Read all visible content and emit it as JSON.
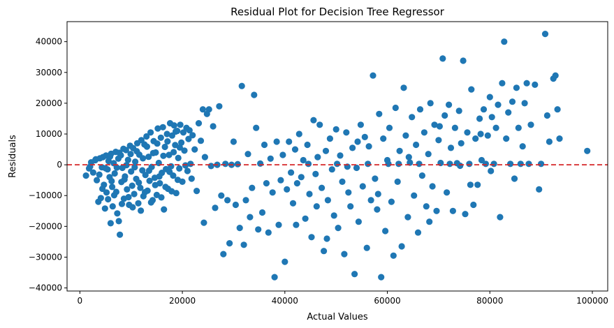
{
  "chart_data": {
    "type": "scatter",
    "title": "Residual Plot for Decision Tree Regressor",
    "xlabel": "Actual Values",
    "ylabel": "Residuals",
    "xlim": [
      -2500,
      103000
    ],
    "ylim": [
      -41000,
      46500
    ],
    "xticks": [
      0,
      20000,
      40000,
      60000,
      80000,
      100000
    ],
    "yticks": [
      -40000,
      -30000,
      -20000,
      -10000,
      0,
      10000,
      20000,
      30000,
      40000
    ],
    "point_color": "#1f77b4",
    "reference_line": {
      "y": 0,
      "color": "#d62728",
      "style": "dashed"
    },
    "grid": false,
    "points": [
      [
        1200,
        -3500
      ],
      [
        1800,
        -1200
      ],
      [
        2200,
        800
      ],
      [
        2600,
        -2500
      ],
      [
        3000,
        1500
      ],
      [
        3300,
        -5000
      ],
      [
        3600,
        -12000
      ],
      [
        3900,
        2100
      ],
      [
        4100,
        -10800
      ],
      [
        4300,
        -800
      ],
      [
        4500,
        2500
      ],
      [
        4700,
        -6500
      ],
      [
        4900,
        -14200
      ],
      [
        5100,
        3000
      ],
      [
        5200,
        -9000
      ],
      [
        5400,
        -1500
      ],
      [
        5600,
        1200
      ],
      [
        5800,
        -4000
      ],
      [
        6000,
        -19000
      ],
      [
        6100,
        3600
      ],
      [
        6300,
        -7200
      ],
      [
        6400,
        -13500
      ],
      [
        6600,
        500
      ],
      [
        6800,
        -2800
      ],
      [
        7000,
        4200
      ],
      [
        7100,
        -8800
      ],
      [
        7300,
        -15800
      ],
      [
        7500,
        2000
      ],
      [
        7600,
        -18300
      ],
      [
        7800,
        -22700
      ],
      [
        8000,
        3100
      ],
      [
        8100,
        -5600
      ],
      [
        8300,
        -1000
      ],
      [
        8500,
        5200
      ],
      [
        8600,
        -11000
      ],
      [
        8800,
        -3800
      ],
      [
        9000,
        4800
      ],
      [
        9200,
        -8000
      ],
      [
        9400,
        1600
      ],
      [
        9600,
        -13000
      ],
      [
        9800,
        6200
      ],
      [
        10000,
        -2200
      ],
      [
        10200,
        -6800
      ],
      [
        10400,
        5400
      ],
      [
        10600,
        -9500
      ],
      [
        10800,
        1000
      ],
      [
        11000,
        -4600
      ],
      [
        11200,
        7000
      ],
      [
        11400,
        -12500
      ],
      [
        11600,
        3300
      ],
      [
        11800,
        -7500
      ],
      [
        12000,
        8000
      ],
      [
        12200,
        -1800
      ],
      [
        12400,
        -10200
      ],
      [
        12600,
        6600
      ],
      [
        12800,
        -3300
      ],
      [
        13000,
        9200
      ],
      [
        13200,
        -8400
      ],
      [
        13400,
        2600
      ],
      [
        13600,
        -5200
      ],
      [
        13800,
        10500
      ],
      [
        14000,
        -700
      ],
      [
        14200,
        -11500
      ],
      [
        14400,
        7700
      ],
      [
        14600,
        -4200
      ],
      [
        14800,
        4000
      ],
      [
        15000,
        -9800
      ],
      [
        15200,
        11800
      ],
      [
        15400,
        600
      ],
      [
        15600,
        -6000
      ],
      [
        15800,
        8800
      ],
      [
        16000,
        -2600
      ],
      [
        16200,
        12200
      ],
      [
        16400,
        -14500
      ],
      [
        16600,
        5800
      ],
      [
        16800,
        -1400
      ],
      [
        17000,
        10000
      ],
      [
        17200,
        -7800
      ],
      [
        17400,
        3200
      ],
      [
        17600,
        13500
      ],
      [
        17800,
        -500
      ],
      [
        18000,
        9500
      ],
      [
        18200,
        -3500
      ],
      [
        18400,
        12800
      ],
      [
        18600,
        6400
      ],
      [
        18800,
        -9200
      ],
      [
        19000,
        11000
      ],
      [
        19200,
        2200
      ],
      [
        19400,
        -1200
      ],
      [
        19600,
        13000
      ],
      [
        19800,
        7200
      ],
      [
        20000,
        -5500
      ],
      [
        20200,
        10500
      ],
      [
        20400,
        4600
      ],
      [
        20600,
        -200
      ],
      [
        20800,
        12000
      ],
      [
        21000,
        -2000
      ],
      [
        21200,
        8400
      ],
      [
        21400,
        11200
      ],
      [
        21600,
        300
      ],
      [
        21800,
        -4500
      ],
      [
        22000,
        9600
      ],
      [
        22400,
        5000
      ],
      [
        22800,
        -8500
      ],
      [
        23200,
        13500
      ],
      [
        23600,
        7800
      ],
      [
        24000,
        18000
      ],
      [
        24200,
        -18800
      ],
      [
        24400,
        2500
      ],
      [
        24800,
        16500
      ],
      [
        25200,
        18000
      ],
      [
        25600,
        -400
      ],
      [
        26000,
        12500
      ],
      [
        26400,
        -14000
      ],
      [
        26800,
        0
      ],
      [
        27200,
        19000
      ],
      [
        27600,
        -10000
      ],
      [
        28000,
        -29000
      ],
      [
        28400,
        300
      ],
      [
        28800,
        -11500
      ],
      [
        29200,
        -25500
      ],
      [
        29600,
        0
      ],
      [
        30000,
        7500
      ],
      [
        30400,
        -13000
      ],
      [
        30800,
        200
      ],
      [
        31200,
        -20500
      ],
      [
        31600,
        25600
      ],
      [
        32000,
        -26000
      ],
      [
        32400,
        -11500
      ],
      [
        32800,
        3500
      ],
      [
        33200,
        -17000
      ],
      [
        33600,
        -7500
      ],
      [
        34000,
        22700
      ],
      [
        34400,
        12000
      ],
      [
        34800,
        -21000
      ],
      [
        35200,
        400
      ],
      [
        35600,
        -15500
      ],
      [
        36000,
        6500
      ],
      [
        36400,
        -6000
      ],
      [
        36800,
        -22000
      ],
      [
        37200,
        2000
      ],
      [
        37600,
        -9000
      ],
      [
        38000,
        -36500
      ],
      [
        38400,
        7500
      ],
      [
        38800,
        -19500
      ],
      [
        39200,
        -5000
      ],
      [
        39600,
        3200
      ],
      [
        40000,
        -31500
      ],
      [
        40400,
        -8000
      ],
      [
        40800,
        7500
      ],
      [
        41200,
        -2500
      ],
      [
        41600,
        -12500
      ],
      [
        42000,
        5000
      ],
      [
        42400,
        -6000
      ],
      [
        42800,
        10000
      ],
      [
        43200,
        -4000
      ],
      [
        43600,
        1500
      ],
      [
        44000,
        -17500
      ],
      [
        44400,
        6500
      ],
      [
        44800,
        -9500
      ],
      [
        45200,
        -23500
      ],
      [
        45600,
        14500
      ],
      [
        46000,
        -3000
      ],
      [
        46400,
        2500
      ],
      [
        46800,
        13000
      ],
      [
        47200,
        -7500
      ],
      [
        47600,
        -28000
      ],
      [
        48000,
        4500
      ],
      [
        48400,
        -11500
      ],
      [
        48800,
        8500
      ],
      [
        49200,
        -1500
      ],
      [
        49600,
        -16500
      ],
      [
        50000,
        11500
      ],
      [
        50400,
        -20500
      ],
      [
        50800,
        3000
      ],
      [
        51200,
        -5500
      ],
      [
        51600,
        -29000
      ],
      [
        52000,
        10500
      ],
      [
        52400,
        -9000
      ],
      [
        52800,
        -13500
      ],
      [
        53200,
        5500
      ],
      [
        53600,
        -35500
      ],
      [
        54000,
        -1000
      ],
      [
        54400,
        -18500
      ],
      [
        54800,
        13000
      ],
      [
        55200,
        -7000
      ],
      [
        55600,
        9000
      ],
      [
        56000,
        -27000
      ],
      [
        56400,
        6000
      ],
      [
        56800,
        -11500
      ],
      [
        57200,
        29000
      ],
      [
        57600,
        -4500
      ],
      [
        58000,
        -14500
      ],
      [
        58400,
        16500
      ],
      [
        58800,
        -36500
      ],
      [
        59200,
        8500
      ],
      [
        59600,
        -21500
      ],
      [
        60000,
        1500
      ],
      [
        60400,
        12000
      ],
      [
        60800,
        -12000
      ],
      [
        61200,
        -29500
      ],
      [
        61600,
        18500
      ],
      [
        62000,
        -5500
      ],
      [
        62400,
        4500
      ],
      [
        62800,
        -26500
      ],
      [
        63200,
        25000
      ],
      [
        63600,
        9500
      ],
      [
        64000,
        -17000
      ],
      [
        64400,
        700
      ],
      [
        64800,
        15500
      ],
      [
        65200,
        -10000
      ],
      [
        65600,
        6500
      ],
      [
        66000,
        -22000
      ],
      [
        66400,
        18000
      ],
      [
        66800,
        -3500
      ],
      [
        67200,
        10500
      ],
      [
        67600,
        -13500
      ],
      [
        68000,
        3500
      ],
      [
        68400,
        20000
      ],
      [
        68800,
        -7000
      ],
      [
        69200,
        13000
      ],
      [
        69600,
        -15000
      ],
      [
        70000,
        8000
      ],
      [
        70400,
        600
      ],
      [
        70800,
        34500
      ],
      [
        71200,
        16000
      ],
      [
        71600,
        -9000
      ],
      [
        72000,
        19500
      ],
      [
        72400,
        5500
      ],
      [
        72800,
        -15000
      ],
      [
        73200,
        12000
      ],
      [
        73600,
        500
      ],
      [
        74000,
        17500
      ],
      [
        74400,
        7000
      ],
      [
        74800,
        33800
      ],
      [
        75200,
        -16000
      ],
      [
        75600,
        10500
      ],
      [
        76000,
        300
      ],
      [
        76400,
        24500
      ],
      [
        76800,
        -13000
      ],
      [
        77200,
        8500
      ],
      [
        77600,
        -6500
      ],
      [
        78000,
        15000
      ],
      [
        78400,
        1500
      ],
      [
        78800,
        18000
      ],
      [
        79200,
        300
      ],
      [
        79600,
        9500
      ],
      [
        80000,
        22000
      ],
      [
        80400,
        15500
      ],
      [
        80800,
        300
      ],
      [
        81200,
        12000
      ],
      [
        81600,
        19500
      ],
      [
        82000,
        -17000
      ],
      [
        82400,
        26500
      ],
      [
        82800,
        40000
      ],
      [
        83200,
        8500
      ],
      [
        83600,
        17000
      ],
      [
        84000,
        300
      ],
      [
        84400,
        20500
      ],
      [
        84800,
        -4500
      ],
      [
        85200,
        25000
      ],
      [
        85600,
        12000
      ],
      [
        86000,
        300
      ],
      [
        86400,
        6000
      ],
      [
        86800,
        20000
      ],
      [
        87200,
        26500
      ],
      [
        87600,
        300
      ],
      [
        88000,
        13000
      ],
      [
        88800,
        26000
      ],
      [
        89600,
        -8000
      ],
      [
        90000,
        300
      ],
      [
        90800,
        42500
      ],
      [
        91200,
        16000
      ],
      [
        91600,
        7500
      ],
      [
        92400,
        28000
      ],
      [
        92800,
        29000
      ],
      [
        93200,
        18000
      ],
      [
        93600,
        8500
      ],
      [
        99000,
        4500
      ],
      [
        2000,
        -600
      ],
      [
        3100,
        1800
      ],
      [
        3800,
        -3200
      ],
      [
        4400,
        -7800
      ],
      [
        5000,
        -1100
      ],
      [
        5500,
        -11200
      ],
      [
        5900,
        2700
      ],
      [
        6200,
        -5300
      ],
      [
        6700,
        -9900
      ],
      [
        7200,
        -900
      ],
      [
        7700,
        3900
      ],
      [
        8200,
        -12700
      ],
      [
        8700,
        -4800
      ],
      [
        9100,
        -100
      ],
      [
        9500,
        -10500
      ],
      [
        9900,
        3500
      ],
      [
        10300,
        -13800
      ],
      [
        10700,
        -800
      ],
      [
        11100,
        4400
      ],
      [
        11500,
        -5800
      ],
      [
        11900,
        -14900
      ],
      [
        12300,
        2100
      ],
      [
        12700,
        -8900
      ],
      [
        13100,
        5900
      ],
      [
        13500,
        -1900
      ],
      [
        13900,
        -12200
      ],
      [
        14300,
        3800
      ],
      [
        14700,
        -6600
      ],
      [
        15100,
        6900
      ],
      [
        15500,
        -3800
      ],
      [
        15900,
        -10600
      ],
      [
        16300,
        2900
      ],
      [
        16700,
        -7200
      ],
      [
        17100,
        7600
      ],
      [
        17500,
        -2300
      ],
      [
        17900,
        -8600
      ],
      [
        18300,
        4100
      ],
      [
        18700,
        10800
      ],
      [
        19100,
        -4900
      ],
      [
        19500,
        5600
      ],
      [
        42200,
        -19500
      ],
      [
        44600,
        300
      ],
      [
        46200,
        -13500
      ],
      [
        48200,
        -24000
      ],
      [
        50200,
        300
      ],
      [
        52200,
        -600
      ],
      [
        54200,
        7500
      ],
      [
        56200,
        300
      ],
      [
        58200,
        -9500
      ],
      [
        60200,
        300
      ],
      [
        62200,
        300
      ],
      [
        64200,
        2500
      ],
      [
        66200,
        300
      ],
      [
        68200,
        -18500
      ],
      [
        70200,
        12500
      ],
      [
        72200,
        300
      ],
      [
        74200,
        -300
      ],
      [
        76200,
        -6500
      ],
      [
        78200,
        10000
      ],
      [
        80200,
        -2000
      ]
    ]
  }
}
